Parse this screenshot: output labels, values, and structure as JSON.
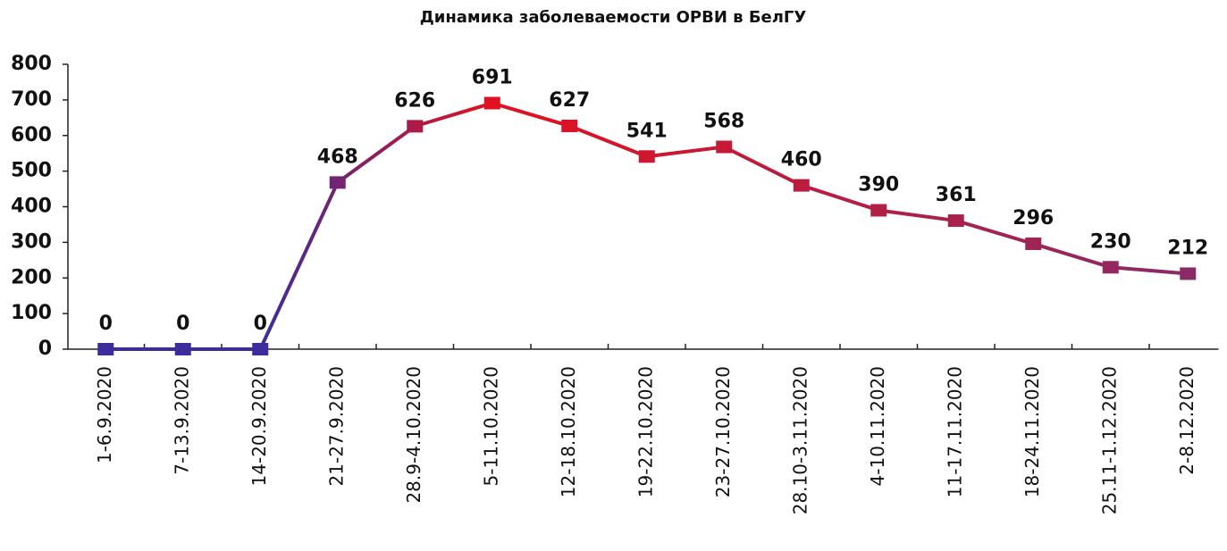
{
  "chart_data": {
    "type": "line",
    "title": "Динамика заболеваемости ОРВИ в БелГУ",
    "categories": [
      "1-6.9.2020",
      "7-13.9.2020",
      "14-20.9.2020",
      "21-27.9.2020",
      "28.9-4.10.2020",
      "5-11.10.2020",
      "12-18.10.2020",
      "19-22.10.2020",
      "23-27.10.2020",
      "28.10-3.11.2020",
      "4-10.11.2020",
      "11-17.11.2020",
      "18-24.11.2020",
      "25.11-1.12.2020",
      "2-8.12.2020"
    ],
    "series": [
      {
        "colors": [
          "#3b2d9c",
          "#e3111f",
          "#8a2a66"
        ],
        "values": [
          0,
          0,
          0,
          468,
          626,
          691,
          627,
          541,
          568,
          460,
          390,
          361,
          296,
          230,
          212
        ]
      }
    ],
    "ylim": [
      0,
      800
    ],
    "yticks": [
      0,
      100,
      200,
      300,
      400,
      500,
      600,
      700,
      800
    ],
    "grid": false
  }
}
